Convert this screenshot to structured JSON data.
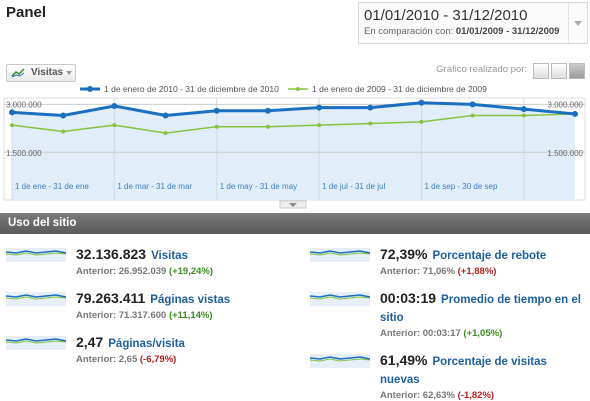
{
  "header": {
    "title": "Panel",
    "date_range": "01/01/2010 - 31/12/2010",
    "comparison_label": "En comparación con:",
    "comparison_range": "01/01/2009 - 31/12/2009"
  },
  "toolbar": {
    "metric_button": "Visitas",
    "graph_by_label": "Gráfico realizado por:"
  },
  "chart_data": {
    "type": "line",
    "categories": [
      "1 de ene - 31 de ene",
      null,
      "1 de mar - 31 de mar",
      null,
      "1 de may - 31 de may",
      null,
      "1 de jul - 31 de jul",
      null,
      "1 de sep - 30 de sep",
      null,
      null,
      null
    ],
    "series": [
      {
        "name": "1 de enero de 2010 - 31 de diciembre de 2010",
        "color": "#1a6fc0",
        "values": [
          2750000,
          2650000,
          2950000,
          2650000,
          2800000,
          2800000,
          2900000,
          2900000,
          3050000,
          3000000,
          2850000,
          2700000
        ]
      },
      {
        "name": "1 de enero de 2009 - 31 de diciembre de 2009",
        "color": "#86c23e",
        "values": [
          2350000,
          2150000,
          2350000,
          2100000,
          2300000,
          2300000,
          2350000,
          2400000,
          2450000,
          2650000,
          2650000,
          2700000
        ]
      }
    ],
    "ylim": [
      0,
      3200000
    ],
    "yticks": [
      {
        "value": 1500000,
        "label": "1.500.000"
      },
      {
        "value": 3000000,
        "label": "3.000.000"
      }
    ],
    "grid": true
  },
  "section": {
    "title": "Uso del sitio",
    "metrics": [
      {
        "value": "32.136.823",
        "name": "Visitas",
        "previous": "Anterior: 26.952.039",
        "change": "(+19,24%)",
        "change_color": "#3a8c1e"
      },
      {
        "value": "79.263.411",
        "name": "Páginas vistas",
        "previous": "Anterior: 71.317.600",
        "change": "(+11,14%)",
        "change_color": "#3a8c1e"
      },
      {
        "value": "2,47",
        "name": "Páginas/visita",
        "previous": "Anterior: 2,65",
        "change": "(-6,79%)",
        "change_color": "#b81d1d"
      },
      {
        "value": "72,39%",
        "name": "Porcentaje de rebote",
        "previous": "Anterior: 71,06%",
        "change": "(+1,88%)",
        "change_color": "#b81d1d"
      },
      {
        "value": "00:03:19",
        "name": "Promedio de tiempo en el sitio",
        "previous": "Anterior: 00:03:17",
        "change": "(+1,05%)",
        "change_color": "#3a8c1e"
      },
      {
        "value": "61,49%",
        "name": "Porcentaje de visitas nuevas",
        "previous": "Anterior: 62,63%",
        "change": "(-1,82%)",
        "change_color": "#b81d1d"
      }
    ]
  }
}
